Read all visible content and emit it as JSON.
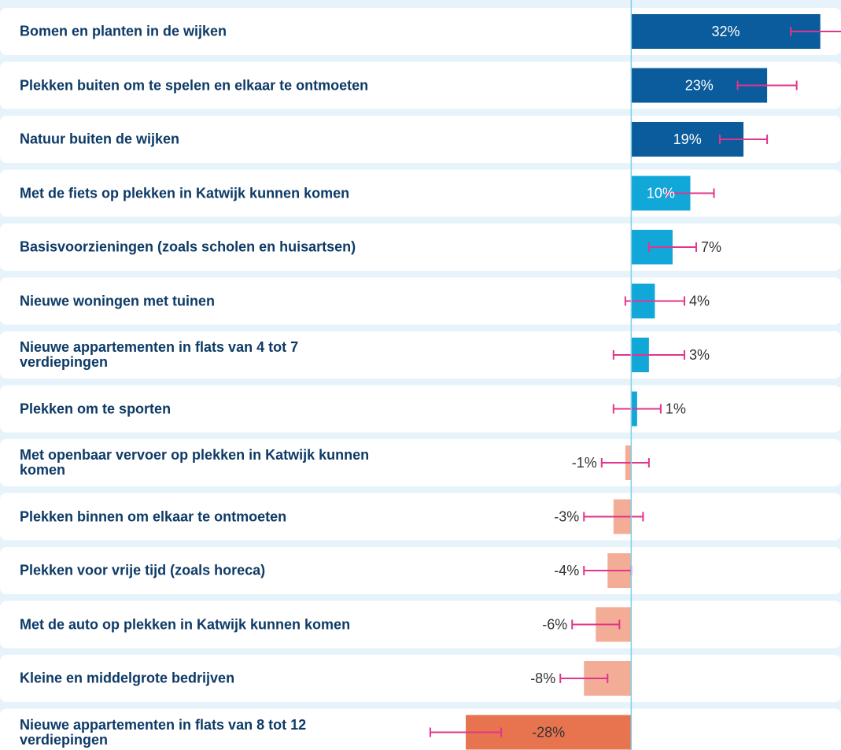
{
  "chart_data": {
    "type": "bar",
    "orientation": "horizontal",
    "categories": [
      "Bomen en planten in de wijken",
      "Plekken buiten om te spelen en elkaar te ontmoeten",
      "Natuur buiten de wijken",
      "Met de fiets op plekken in Katwijk kunnen komen",
      "Basisvoorzieningen (zoals scholen en huisartsen)",
      "Nieuwe woningen met tuinen",
      "Nieuwe appartementen in flats van 4 tot 7 verdiepingen",
      "Plekken om te sporten",
      "Met openbaar vervoer op plekken in Katwijk kunnen komen",
      "Plekken binnen om elkaar te ontmoeten",
      "Plekken voor vrije tijd (zoals horeca)",
      "Met de auto op plekken in Katwijk kunnen komen",
      "Kleine en middelgrote bedrijven",
      "Nieuwe appartementen in flats van 8 tot 12 verdiepingen"
    ],
    "values": [
      32,
      23,
      19,
      10,
      7,
      4,
      3,
      1,
      -1,
      -3,
      -4,
      -6,
      -8,
      -28
    ],
    "value_labels": [
      "32%",
      "23%",
      "19%",
      "10%",
      "7%",
      "4%",
      "3%",
      "1%",
      "-1%",
      "-3%",
      "-4%",
      "-6%",
      "-8%",
      "-28%"
    ],
    "errors": [
      5,
      5,
      4,
      4,
      4,
      5,
      6,
      4,
      4,
      5,
      4,
      4,
      4,
      6
    ],
    "colors": [
      "#0b5c9c",
      "#0b5c9c",
      "#0b5c9c",
      "#12a7d9",
      "#12a7d9",
      "#12a7d9",
      "#12a7d9",
      "#12a7d9",
      "#f3ad97",
      "#f3ad97",
      "#f3ad97",
      "#f3ad97",
      "#f3ad97",
      "#e8744f"
    ],
    "error_color": "#e0358b",
    "axis_color": "#7fd0e8",
    "xlim": [
      -30,
      35.5
    ]
  }
}
